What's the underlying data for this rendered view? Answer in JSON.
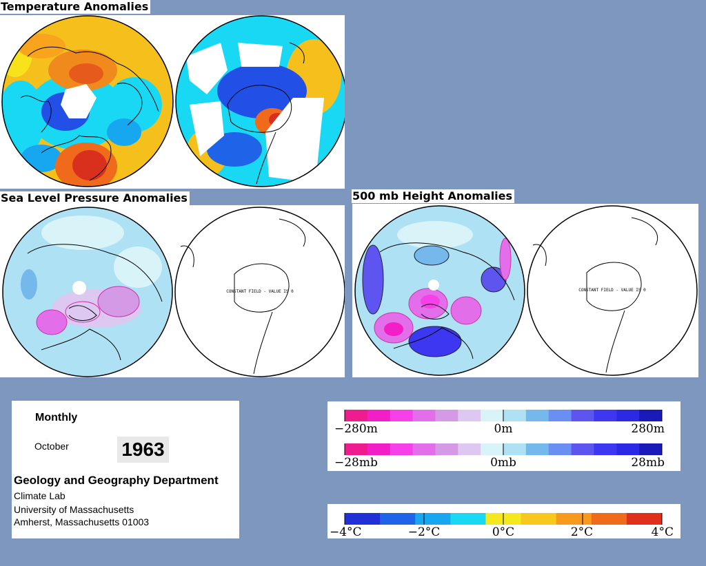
{
  "panels": {
    "temperature": {
      "title": "Temperature Anomalies"
    },
    "slp": {
      "title": "Sea Level Pressure Anomalies",
      "constant_field_text": "CONSTANT FIELD - VALUE IS 0"
    },
    "height500": {
      "title": "500 mb Height Anomalies",
      "constant_field_text": "CONSTANT FIELD - VALUE IS 0"
    }
  },
  "info": {
    "period": "Monthly",
    "month": "October",
    "year": "1963",
    "department": "Geology and Geography Department",
    "lab": "Climate Lab",
    "university": "University of Massachusetts",
    "address": "Amherst, Massachusetts 01003"
  },
  "legends": {
    "height": {
      "left": "−280m",
      "center": "0m",
      "right": "280m"
    },
    "pressure": {
      "left": "−28mb",
      "center": "0mb",
      "right": "28mb"
    },
    "temperature": {
      "t1": "−4°C",
      "t2": "−2°C",
      "t3": "0°C",
      "t4": "2°C",
      "t5": "4°C"
    }
  },
  "colors": {
    "background": "#7d97bf",
    "anomaly_scale": [
      "#ee1c8f",
      "#f21ec8",
      "#f640e8",
      "#e36ee9",
      "#d59ae6",
      "#dcc8f0",
      "#d8f4f8",
      "#aee1f3",
      "#74b8ec",
      "#6a8ff2",
      "#5e55f1",
      "#3d37f2",
      "#2a2ae5",
      "#1a1ab8"
    ],
    "temperature_scale": [
      "#2230d8",
      "#1e63e8",
      "#16a7f0",
      "#18d8f4",
      "#f5e81c",
      "#f8c81c",
      "#f89a1c",
      "#f06a1c",
      "#e0301c"
    ]
  }
}
